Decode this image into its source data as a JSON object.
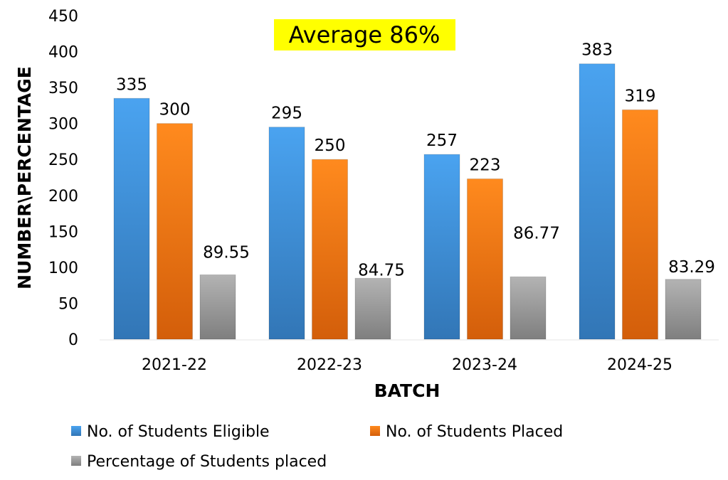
{
  "chart_data": {
    "type": "bar",
    "title": "Average 86%",
    "xlabel": "BATCH",
    "ylabel": "NUMBER\\PERCENTAGE",
    "ylim": [
      0,
      450
    ],
    "yticks": [
      0,
      50,
      100,
      150,
      200,
      250,
      300,
      350,
      400,
      450
    ],
    "categories": [
      "2021-22",
      "2022-23",
      "2023-24",
      "2024-25"
    ],
    "series": [
      {
        "name": "No. of Students Eligible",
        "values": [
          335,
          295,
          257,
          383
        ],
        "labels": [
          "335",
          "295",
          "257",
          "383"
        ],
        "color": "#3f8fd8"
      },
      {
        "name": "No. of Students Placed",
        "values": [
          300,
          250,
          223,
          319
        ],
        "labels": [
          "300",
          "250",
          "223",
          "319"
        ],
        "color": "#f27a12"
      },
      {
        "name": "Percentage of Students placed",
        "values": [
          89.55,
          84.75,
          86.77,
          83.29
        ],
        "labels": [
          "89.55",
          "84.75",
          "86.77",
          "83.29"
        ],
        "color": "#9a9a9a"
      }
    ],
    "grid": false,
    "legend": "bottom",
    "title_highlight": "#ffff00"
  }
}
